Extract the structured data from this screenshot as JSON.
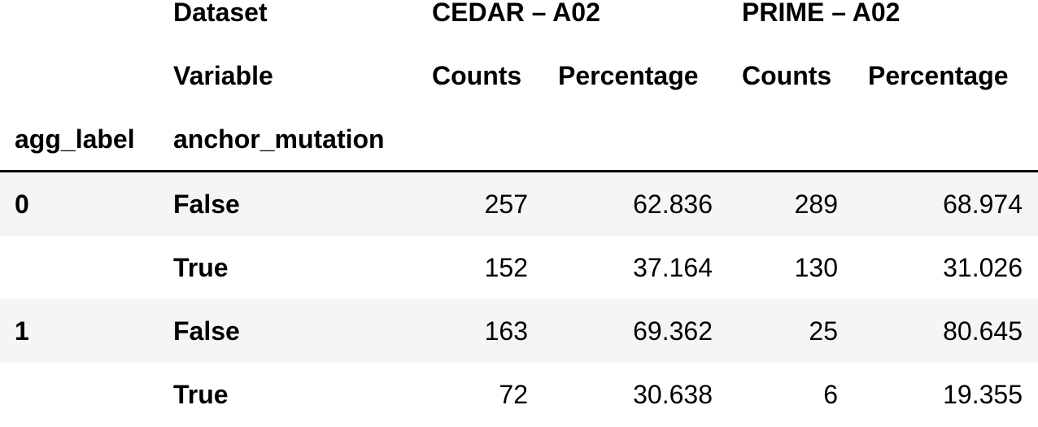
{
  "table": {
    "header": {
      "dataset_label": "Dataset",
      "variable_label": "Variable",
      "index_name_1": "agg_label",
      "index_name_2": "anchor_mutation",
      "groups": [
        "CEDAR – A02",
        "PRIME – A02"
      ],
      "columns": [
        "Counts",
        "Percentage",
        "Counts",
        "Percentage"
      ]
    },
    "rows": [
      {
        "agg_label": "0",
        "anchor_mutation": "False",
        "values": [
          "257",
          "62.836",
          "289",
          "68.974"
        ]
      },
      {
        "agg_label": "",
        "anchor_mutation": "True",
        "values": [
          "152",
          "37.164",
          "130",
          "31.026"
        ]
      },
      {
        "agg_label": "1",
        "anchor_mutation": "False",
        "values": [
          "163",
          "69.362",
          "25",
          "80.645"
        ]
      },
      {
        "agg_label": "",
        "anchor_mutation": "True",
        "values": [
          "72",
          "30.638",
          "6",
          "19.355"
        ]
      }
    ]
  }
}
